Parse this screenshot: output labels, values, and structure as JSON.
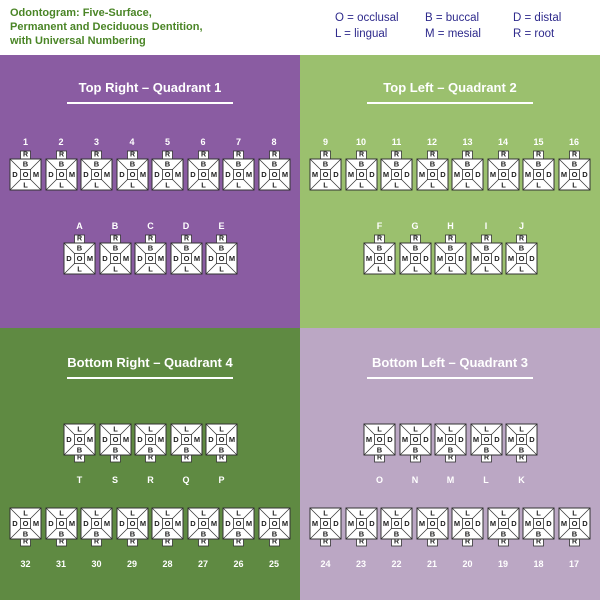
{
  "title_lines": [
    "Odontogram: Five-Surface,",
    "Permanent and Deciduous Dentition,",
    "with Universal Numbering"
  ],
  "legend": [
    {
      "code": "O",
      "label": "occlusal"
    },
    {
      "code": "B",
      "label": "buccal"
    },
    {
      "code": "D",
      "label": "distal"
    },
    {
      "code": "L",
      "label": "lingual"
    },
    {
      "code": "M",
      "label": "mesial"
    },
    {
      "code": "R",
      "label": "root"
    }
  ],
  "colors": {
    "q1": "#8a5ca2",
    "q2": "#9bc06e",
    "q3": "#bba7c4",
    "q4": "#5f8a42",
    "tooth_fill": "#ffffff",
    "tooth_stroke": "#333333",
    "title": "#4a8526",
    "legend": "#2e2a8c"
  },
  "quadrants": [
    {
      "id": "q1",
      "title": "Top Right – Quadrant 1",
      "jaw": "upper",
      "left_surface": "D",
      "right_surface": "M",
      "permanent": [
        "1",
        "2",
        "3",
        "4",
        "5",
        "6",
        "7",
        "8"
      ],
      "deciduous": [
        "A",
        "B",
        "C",
        "D",
        "E"
      ]
    },
    {
      "id": "q2",
      "title": "Top Left – Quadrant 2",
      "jaw": "upper",
      "left_surface": "M",
      "right_surface": "D",
      "permanent": [
        "9",
        "10",
        "11",
        "12",
        "13",
        "14",
        "15",
        "16"
      ],
      "deciduous": [
        "F",
        "G",
        "H",
        "I",
        "J"
      ]
    },
    {
      "id": "q4",
      "title": "Bottom Right – Quadrant 4",
      "jaw": "lower",
      "left_surface": "D",
      "right_surface": "M",
      "permanent": [
        "32",
        "31",
        "30",
        "29",
        "28",
        "27",
        "26",
        "25"
      ],
      "deciduous": [
        "T",
        "S",
        "R",
        "Q",
        "P"
      ]
    },
    {
      "id": "q3",
      "title": "Bottom Left – Quadrant 3",
      "jaw": "lower",
      "left_surface": "M",
      "right_surface": "D",
      "permanent": [
        "24",
        "23",
        "22",
        "21",
        "20",
        "19",
        "18",
        "17"
      ],
      "deciduous": [
        "O",
        "N",
        "M",
        "L",
        "K"
      ]
    }
  ]
}
